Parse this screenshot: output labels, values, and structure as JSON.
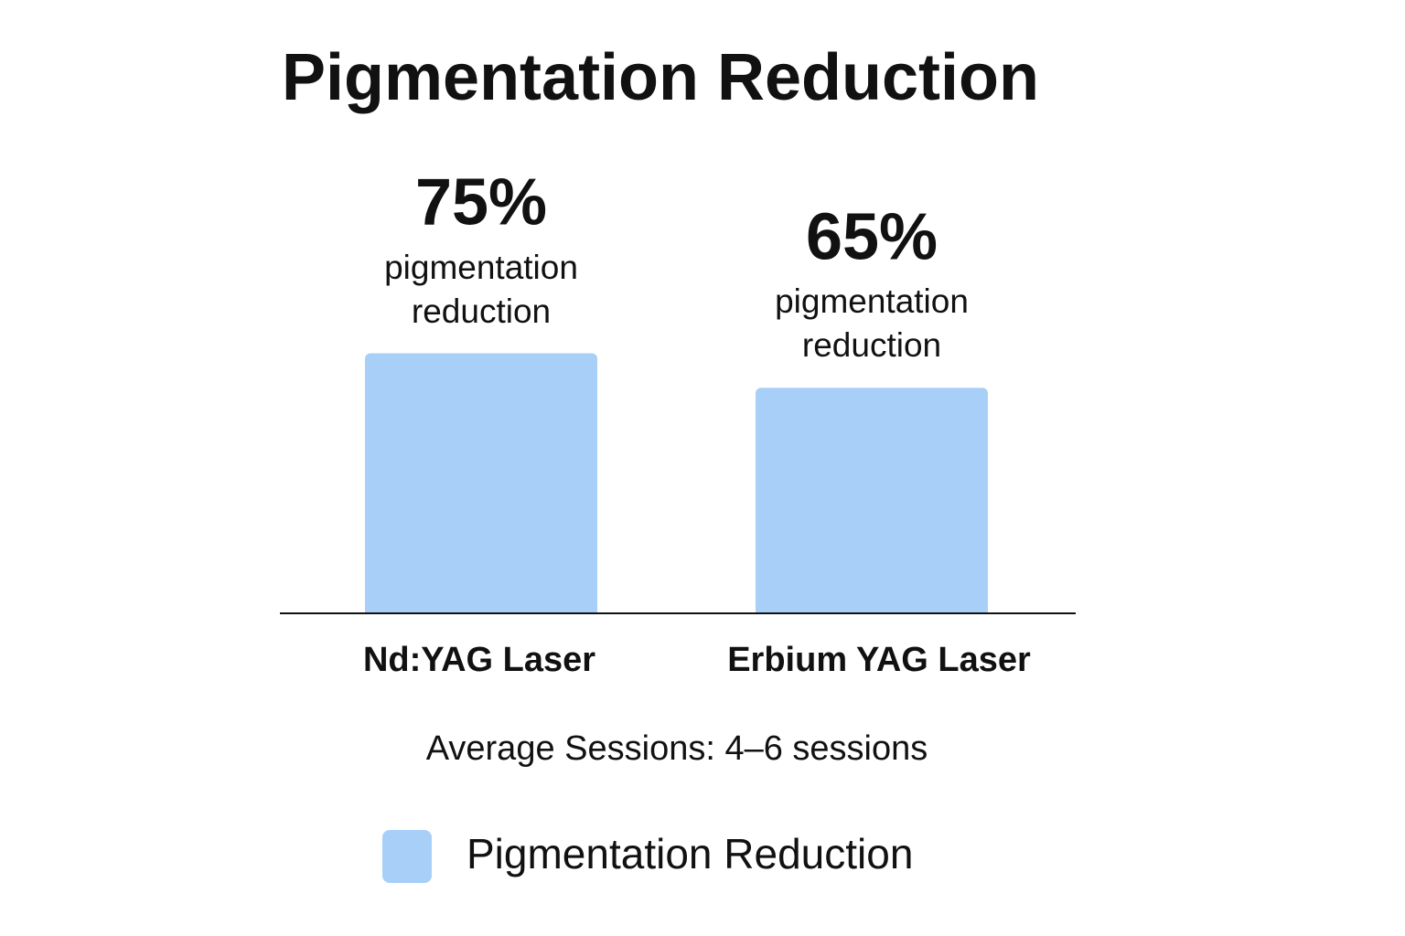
{
  "chart_data": {
    "type": "bar",
    "title": "Pigmentation Reduction",
    "categories": [
      "Nd:YAG Laser",
      "Erbium YAG Laser"
    ],
    "series": [
      {
        "name": "Pigmentation Reduction",
        "color": "#a8cff8",
        "values": [
          75,
          65
        ],
        "value_labels": [
          "75%",
          "65%"
        ],
        "value_captions": [
          "pigmentation reduction",
          "pigmentation reduction"
        ]
      }
    ],
    "annotation": "Average Sessions: 4–6 sessions"
  }
}
